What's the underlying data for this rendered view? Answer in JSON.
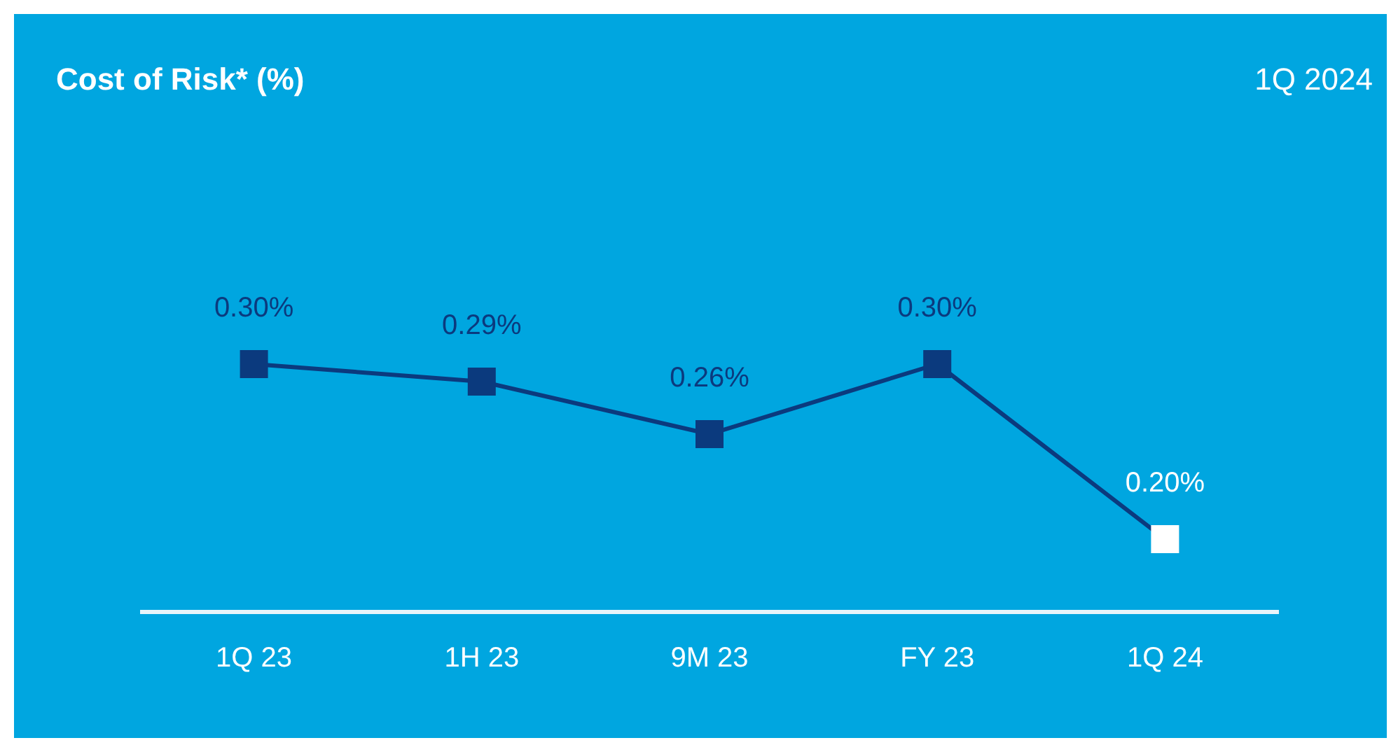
{
  "chart_data": {
    "type": "line",
    "title": "Cost of Risk* (%)",
    "subtitle": "1Q 2024",
    "categories": [
      "1Q 23",
      "1H 23",
      "9M 23",
      "FY 23",
      "1Q 24"
    ],
    "series": [
      {
        "color": "#0b3a7e",
        "colors": [
          "#0b3a7e",
          "#0b3a7e",
          "#0b3a7e",
          "#0b3a7e",
          "#ffffff"
        ],
        "values": [
          0.3,
          0.29,
          0.26,
          0.3,
          0.2
        ],
        "value_labels": [
          "0.30%",
          "0.29%",
          "0.26%",
          "0.30%",
          "0.20%"
        ]
      }
    ],
    "marker": "square",
    "line_style": "solid"
  }
}
